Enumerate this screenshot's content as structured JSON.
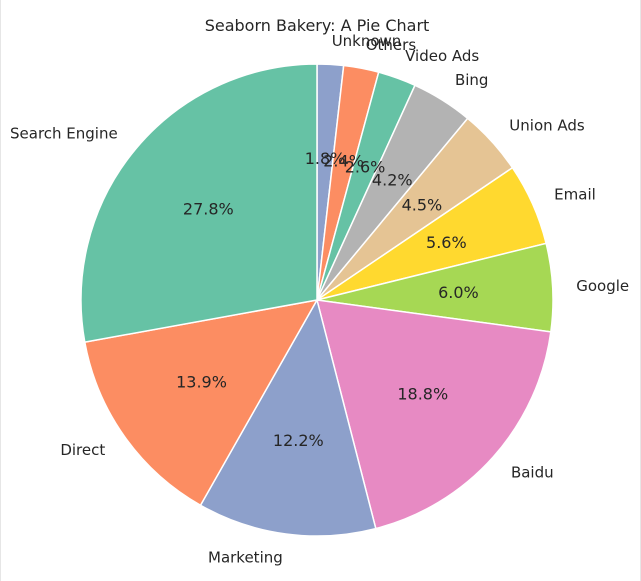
{
  "chart_data": {
    "type": "pie",
    "title": "Seaborn Bakery: A Pie Chart",
    "start_angle_deg": 90,
    "direction": "clockwise",
    "slices": [
      {
        "label": "Unknown",
        "value": 1.8,
        "pct_label": "1.8%",
        "color": "#8da0cb"
      },
      {
        "label": "Others",
        "value": 2.4,
        "pct_label": "2.4%",
        "color": "#fc8d62"
      },
      {
        "label": "Video Ads",
        "value": 2.6,
        "pct_label": "2.6%",
        "color": "#66c2a5"
      },
      {
        "label": "Bing",
        "value": 4.2,
        "pct_label": "4.2%",
        "color": "#b3b3b3"
      },
      {
        "label": "Union Ads",
        "value": 4.5,
        "pct_label": "4.5%",
        "color": "#e5c494"
      },
      {
        "label": "Email",
        "value": 5.6,
        "pct_label": "5.6%",
        "color": "#ffd92f"
      },
      {
        "label": "Google",
        "value": 6.0,
        "pct_label": "6.0%",
        "color": "#a6d854"
      },
      {
        "label": "Baidu",
        "value": 18.8,
        "pct_label": "18.8%",
        "color": "#e78ac3"
      },
      {
        "label": "Marketing",
        "value": 12.2,
        "pct_label": "12.2%",
        "color": "#8da0cb"
      },
      {
        "label": "Direct",
        "value": 13.9,
        "pct_label": "13.9%",
        "color": "#fc8d62"
      },
      {
        "label": "Search Engine",
        "value": 27.8,
        "pct_label": "27.8%",
        "color": "#66c2a5"
      }
    ]
  }
}
